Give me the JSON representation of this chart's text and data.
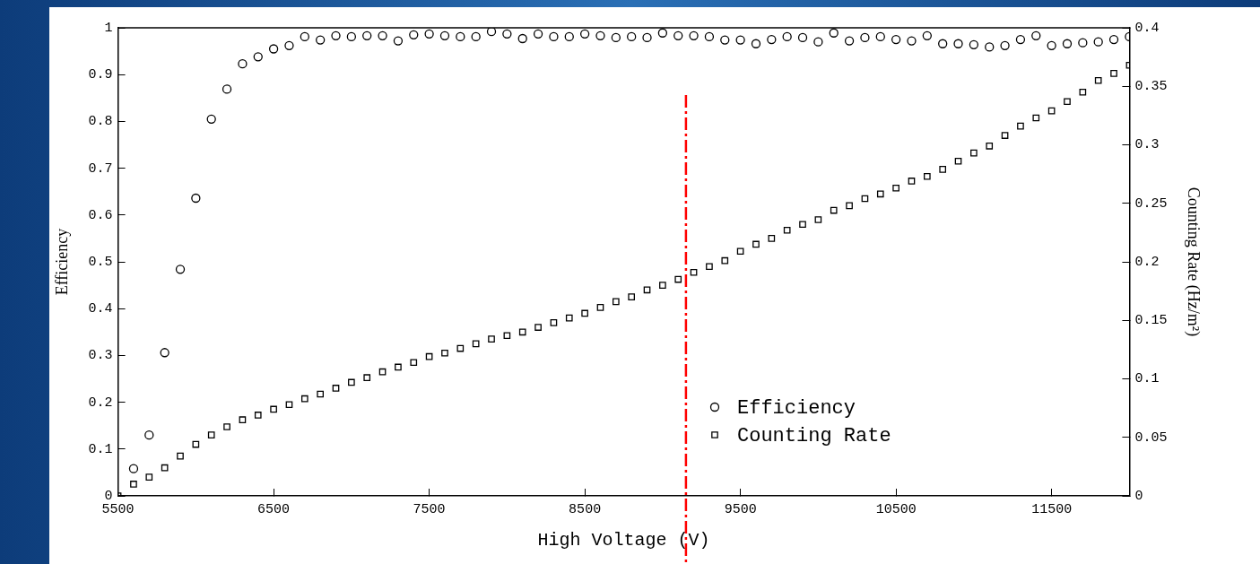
{
  "chart_data": {
    "type": "scatter",
    "xlabel": "High Voltage (V)",
    "ylabel": "Efficiency",
    "y2label": "Counting Rate (Hz/m²)",
    "x": [
      5500,
      5600,
      5700,
      5800,
      5900,
      6000,
      6100,
      6200,
      6300,
      6400,
      6500,
      6600,
      6700,
      6800,
      6900,
      7000,
      7100,
      7200,
      7300,
      7400,
      7500,
      7600,
      7700,
      7800,
      7900,
      8000,
      8100,
      8200,
      8300,
      8400,
      8500,
      8600,
      8700,
      8800,
      8900,
      9000,
      9100,
      9200,
      9300,
      9400,
      9500,
      9600,
      9700,
      9800,
      9900,
      10000,
      10100,
      10200,
      10300,
      10400,
      10500,
      10600,
      10700,
      10800,
      10900,
      11000,
      11100,
      11200,
      11300,
      11400,
      11500,
      11600,
      11700,
      11800,
      11900,
      12000
    ],
    "series": [
      {
        "name": "Efficiency",
        "color": "#000000",
        "marker": "circle",
        "values": [
          null,
          0.058,
          0.13,
          0.306,
          0.484,
          0.636,
          0.805,
          0.869,
          0.923,
          0.938,
          0.955,
          0.962,
          0.981,
          0.974,
          0.983,
          0.981,
          0.983,
          0.983,
          0.972,
          0.985,
          0.987,
          0.983,
          0.981,
          0.981,
          0.992,
          0.987,
          0.977,
          0.987,
          0.981,
          0.981,
          0.987,
          0.983,
          0.979,
          0.981,
          0.979,
          0.989,
          0.983,
          0.983,
          0.981,
          0.974,
          0.974,
          0.966,
          0.975,
          0.981,
          0.979,
          0.97,
          0.989,
          0.972,
          0.979,
          0.981,
          0.975,
          0.972,
          0.983,
          0.966,
          0.966,
          0.964,
          0.959,
          0.962,
          0.975,
          0.983,
          0.962,
          0.966,
          0.968,
          0.97,
          0.975,
          0.981
        ]
      },
      {
        "name": "Counting Rate",
        "color": "#000000",
        "marker": "square",
        "axis": "y2",
        "values": [
          0,
          0.01,
          0.016,
          0.024,
          0.034,
          0.044,
          0.052,
          0.059,
          0.065,
          0.069,
          0.074,
          0.078,
          0.083,
          0.087,
          0.092,
          0.097,
          0.101,
          0.106,
          0.11,
          0.114,
          0.119,
          0.122,
          0.126,
          0.13,
          0.134,
          0.137,
          0.14,
          0.144,
          0.148,
          0.152,
          0.156,
          0.161,
          0.166,
          0.17,
          0.176,
          0.18,
          0.185,
          0.191,
          0.196,
          0.201,
          0.209,
          0.215,
          0.22,
          0.227,
          0.232,
          0.236,
          0.244,
          0.248,
          0.254,
          0.258,
          0.263,
          0.269,
          0.273,
          0.279,
          0.286,
          0.293,
          0.299,
          0.308,
          0.316,
          0.323,
          0.329,
          0.337,
          0.345,
          0.355,
          0.361,
          0.368
        ]
      }
    ],
    "xlim": [
      5500,
      12000
    ],
    "xticks": [
      5500,
      6500,
      7500,
      8500,
      9500,
      10500,
      11500
    ],
    "ylim": [
      0,
      1
    ],
    "yticks": [
      0,
      0.1,
      0.2,
      0.3,
      0.4,
      0.5,
      0.6,
      0.7,
      0.8,
      0.9,
      1
    ],
    "y2lim": [
      0,
      0.4
    ],
    "y2ticks": [
      0,
      0.05,
      0.1,
      0.15,
      0.2,
      0.25,
      0.3,
      0.35,
      0.4
    ],
    "ref_lines": [
      {
        "axis": "x",
        "value": 9150,
        "color": "#ff0000",
        "line_style": "dashed"
      }
    ],
    "grid": false,
    "legend": "bottom right"
  }
}
